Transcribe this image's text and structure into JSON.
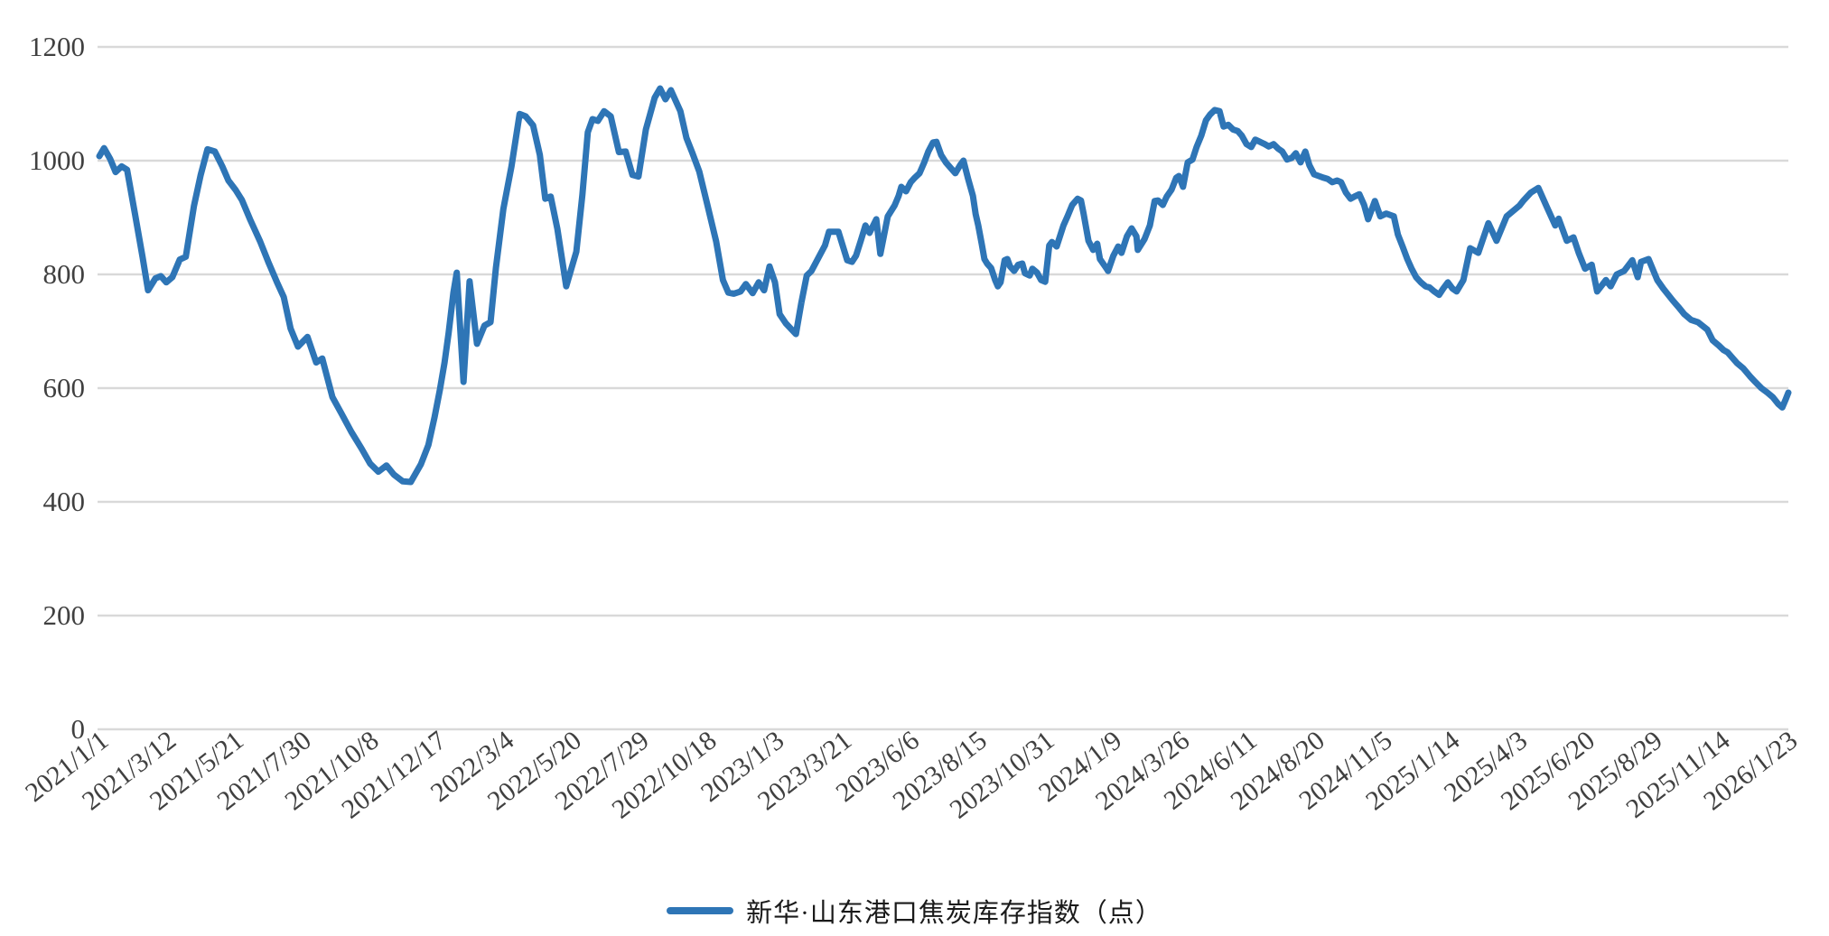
{
  "chart_data": {
    "type": "line",
    "title": "",
    "series_name": "新华·山东港口焦炭库存指数（点）",
    "xlabel": "",
    "ylabel": "",
    "ylim": [
      0,
      1200
    ],
    "y_ticks": [
      0,
      200,
      400,
      600,
      800,
      1000,
      1200
    ],
    "grid": true,
    "legend_position": "bottom",
    "line_color": "#2E75B6",
    "gridline_color": "#D9D9D9",
    "axis_text_color": "#404040",
    "x_label_step": 10,
    "x_labels": [
      "2021/1/1",
      "2021/3/12",
      "2021/5/21",
      "2021/7/30",
      "2021/10/8",
      "2021/12/17",
      "2022/3/4",
      "2022/5/20",
      "2022/7/29",
      "2022/10/18",
      "2023/1/3",
      "2023/3/21",
      "2023/6/6",
      "2023/8/15",
      "2023/10/31",
      "2024/1/9",
      "2024/3/26",
      "2024/6/11",
      "2024/8/20",
      "2024/11/5",
      "2025/1/14",
      "2025/4/3",
      "2025/6/20",
      "2025/8/29",
      "2025/11/14",
      "2026/1/23"
    ],
    "points": [
      [
        0,
        1008
      ],
      [
        0.7,
        1022
      ],
      [
        1.6,
        1003
      ],
      [
        2.4,
        980
      ],
      [
        3.3,
        990
      ],
      [
        4.1,
        984
      ],
      [
        5.3,
        905
      ],
      [
        6.4,
        830
      ],
      [
        7.2,
        772
      ],
      [
        8.3,
        793
      ],
      [
        9.1,
        797
      ],
      [
        9.9,
        786
      ],
      [
        10.8,
        795
      ],
      [
        11.9,
        826
      ],
      [
        12.8,
        831
      ],
      [
        14,
        920
      ],
      [
        15,
        975
      ],
      [
        16,
        1020
      ],
      [
        17.1,
        1016
      ],
      [
        18.2,
        990
      ],
      [
        19.1,
        965
      ],
      [
        20.2,
        948
      ],
      [
        21.1,
        931
      ],
      [
        22.3,
        897
      ],
      [
        23.8,
        858
      ],
      [
        25,
        822
      ],
      [
        26.3,
        786
      ],
      [
        27.3,
        760
      ],
      [
        28.3,
        705
      ],
      [
        29.4,
        673
      ],
      [
        30.8,
        690
      ],
      [
        32.1,
        645
      ],
      [
        33,
        652
      ],
      [
        34.5,
        584
      ],
      [
        35.8,
        556
      ],
      [
        37.3,
        523
      ],
      [
        38.8,
        494
      ],
      [
        40.1,
        467
      ],
      [
        41.3,
        453
      ],
      [
        42.5,
        464
      ],
      [
        43.6,
        448
      ],
      [
        44.9,
        436
      ],
      [
        46.1,
        435
      ],
      [
        47.6,
        466
      ],
      [
        48.7,
        500
      ],
      [
        49.6,
        548
      ],
      [
        50.4,
        597
      ],
      [
        51.1,
        645
      ],
      [
        51.7,
        697
      ],
      [
        52.4,
        768
      ],
      [
        52.9,
        803
      ],
      [
        53.9,
        611
      ],
      [
        54.8,
        788
      ],
      [
        55.9,
        678
      ],
      [
        57,
        710
      ],
      [
        57.9,
        716
      ],
      [
        58.7,
        812
      ],
      [
        59.8,
        915
      ],
      [
        61,
        990
      ],
      [
        62.2,
        1082
      ],
      [
        63.1,
        1078
      ],
      [
        64.2,
        1062
      ],
      [
        65.2,
        1010
      ],
      [
        66,
        933
      ],
      [
        66.8,
        937
      ],
      [
        67.8,
        880
      ],
      [
        69.1,
        779
      ],
      [
        70.6,
        840
      ],
      [
        71.5,
        940
      ],
      [
        72.3,
        1050
      ],
      [
        73,
        1073
      ],
      [
        73.8,
        1070
      ],
      [
        74.7,
        1087
      ],
      [
        75.7,
        1078
      ],
      [
        76.9,
        1015
      ],
      [
        77.9,
        1016
      ],
      [
        78.9,
        975
      ],
      [
        79.8,
        972
      ],
      [
        80.9,
        1055
      ],
      [
        82.2,
        1111
      ],
      [
        83,
        1127
      ],
      [
        83.8,
        1108
      ],
      [
        84.6,
        1124
      ],
      [
        86,
        1087
      ],
      [
        86.9,
        1040
      ],
      [
        87.8,
        1013
      ],
      [
        88.8,
        981
      ],
      [
        90,
        922
      ],
      [
        91.3,
        858
      ],
      [
        92.3,
        790
      ],
      [
        93.1,
        768
      ],
      [
        93.9,
        766
      ],
      [
        94.9,
        770
      ],
      [
        95.7,
        783
      ],
      [
        96.7,
        767
      ],
      [
        97.6,
        786
      ],
      [
        98.4,
        772
      ],
      [
        99.2,
        814
      ],
      [
        100,
        786
      ],
      [
        100.7,
        730
      ],
      [
        101.6,
        714
      ],
      [
        103.1,
        695
      ],
      [
        103.9,
        750
      ],
      [
        104.7,
        798
      ],
      [
        105.4,
        806
      ],
      [
        106.6,
        833
      ],
      [
        107.4,
        851
      ],
      [
        108,
        875
      ],
      [
        109.4,
        875
      ],
      [
        110.7,
        825
      ],
      [
        111.4,
        822
      ],
      [
        112,
        833
      ],
      [
        112.7,
        859
      ],
      [
        113.4,
        886
      ],
      [
        114,
        873
      ],
      [
        115,
        897
      ],
      [
        115.6,
        836
      ],
      [
        116.7,
        902
      ],
      [
        117.7,
        921
      ],
      [
        118.3,
        938
      ],
      [
        118.7,
        954
      ],
      [
        119.4,
        946
      ],
      [
        120.1,
        962
      ],
      [
        120.7,
        970
      ],
      [
        121.4,
        978
      ],
      [
        122.1,
        997
      ],
      [
        122.7,
        1016
      ],
      [
        123.4,
        1032
      ],
      [
        123.9,
        1033
      ],
      [
        124.6,
        1010
      ],
      [
        125.3,
        997
      ],
      [
        126.1,
        986
      ],
      [
        126.7,
        978
      ],
      [
        127.4,
        992
      ],
      [
        127.9,
        1000
      ],
      [
        128.6,
        968
      ],
      [
        129.3,
        938
      ],
      [
        129.7,
        906
      ],
      [
        130.1,
        886
      ],
      [
        130.6,
        854
      ],
      [
        131,
        827
      ],
      [
        131.4,
        819
      ],
      [
        132,
        811
      ],
      [
        132.6,
        790
      ],
      [
        133,
        779
      ],
      [
        133.4,
        786
      ],
      [
        134,
        825
      ],
      [
        134.4,
        827
      ],
      [
        134.8,
        814
      ],
      [
        135.4,
        806
      ],
      [
        136,
        817
      ],
      [
        136.6,
        819
      ],
      [
        137,
        802
      ],
      [
        137.7,
        798
      ],
      [
        138.1,
        810
      ],
      [
        138.8,
        803
      ],
      [
        139.4,
        790
      ],
      [
        140,
        787
      ],
      [
        140.6,
        851
      ],
      [
        141,
        857
      ],
      [
        141.7,
        849
      ],
      [
        142.7,
        886
      ],
      [
        143.3,
        902
      ],
      [
        144,
        922
      ],
      [
        144.8,
        933
      ],
      [
        145.3,
        930
      ],
      [
        145.7,
        906
      ],
      [
        146.4,
        859
      ],
      [
        147.1,
        843
      ],
      [
        147.7,
        854
      ],
      [
        148.1,
        827
      ],
      [
        149.1,
        810
      ],
      [
        149.3,
        806
      ],
      [
        150.1,
        833
      ],
      [
        150.8,
        849
      ],
      [
        151.3,
        838
      ],
      [
        152.1,
        867
      ],
      [
        152.8,
        881
      ],
      [
        153.5,
        867
      ],
      [
        153.7,
        843
      ],
      [
        154.7,
        862
      ],
      [
        155.5,
        886
      ],
      [
        156.2,
        929
      ],
      [
        156.7,
        930
      ],
      [
        157.4,
        922
      ],
      [
        158,
        937
      ],
      [
        158.7,
        949
      ],
      [
        159.4,
        970
      ],
      [
        159.8,
        973
      ],
      [
        160.4,
        954
      ],
      [
        161.1,
        997
      ],
      [
        161.8,
        1002
      ],
      [
        162.4,
        1024
      ],
      [
        163.1,
        1044
      ],
      [
        163.8,
        1071
      ],
      [
        164.4,
        1081
      ],
      [
        165.1,
        1089
      ],
      [
        165.8,
        1087
      ],
      [
        166.4,
        1060
      ],
      [
        167.1,
        1063
      ],
      [
        167.8,
        1055
      ],
      [
        168.5,
        1052
      ],
      [
        169.1,
        1044
      ],
      [
        169.8,
        1029
      ],
      [
        170.5,
        1024
      ],
      [
        171.1,
        1037
      ],
      [
        171.8,
        1033
      ],
      [
        172.5,
        1029
      ],
      [
        173.1,
        1025
      ],
      [
        173.8,
        1029
      ],
      [
        174.5,
        1021
      ],
      [
        175.1,
        1016
      ],
      [
        175.8,
        1002
      ],
      [
        176.5,
        1005
      ],
      [
        177.1,
        1013
      ],
      [
        177.8,
        997
      ],
      [
        178.5,
        1016
      ],
      [
        179.1,
        992
      ],
      [
        179.8,
        976
      ],
      [
        180.5,
        973
      ],
      [
        181.2,
        970
      ],
      [
        181.8,
        968
      ],
      [
        182.5,
        962
      ],
      [
        183.2,
        965
      ],
      [
        183.8,
        962
      ],
      [
        184.5,
        944
      ],
      [
        185.2,
        933
      ],
      [
        185.8,
        937
      ],
      [
        186.5,
        941
      ],
      [
        187.2,
        922
      ],
      [
        187.8,
        897
      ],
      [
        188.8,
        929
      ],
      [
        189.6,
        902
      ],
      [
        190.5,
        907
      ],
      [
        191.6,
        902
      ],
      [
        192.2,
        870
      ],
      [
        192.9,
        849
      ],
      [
        193.6,
        827
      ],
      [
        194.2,
        811
      ],
      [
        194.9,
        795
      ],
      [
        195.6,
        786
      ],
      [
        196.3,
        779
      ],
      [
        196.9,
        777
      ],
      [
        197.6,
        770
      ],
      [
        198.3,
        764
      ],
      [
        198.9,
        775
      ],
      [
        199.6,
        786
      ],
      [
        200.3,
        775
      ],
      [
        200.9,
        770
      ],
      [
        201.9,
        790
      ],
      [
        202.9,
        846
      ],
      [
        204.1,
        838
      ],
      [
        205.6,
        890
      ],
      [
        206.8,
        859
      ],
      [
        208.3,
        902
      ],
      [
        210.2,
        921
      ],
      [
        210.8,
        930
      ],
      [
        211.9,
        944
      ],
      [
        213,
        952
      ],
      [
        214.2,
        920
      ],
      [
        215.5,
        886
      ],
      [
        216,
        898
      ],
      [
        217.2,
        859
      ],
      [
        218.2,
        865
      ],
      [
        219,
        837
      ],
      [
        219.9,
        810
      ],
      [
        220.9,
        817
      ],
      [
        221.7,
        770
      ],
      [
        223,
        790
      ],
      [
        223.7,
        779
      ],
      [
        224.6,
        800
      ],
      [
        225.7,
        806
      ],
      [
        226.9,
        825
      ],
      [
        227.7,
        795
      ],
      [
        228.2,
        822
      ],
      [
        229.3,
        827
      ],
      [
        230.6,
        790
      ],
      [
        231.5,
        775
      ],
      [
        232.9,
        754
      ],
      [
        233.7,
        743
      ],
      [
        234.6,
        730
      ],
      [
        235.6,
        720
      ],
      [
        236.6,
        716
      ],
      [
        238,
        703
      ],
      [
        238.8,
        684
      ],
      [
        239.7,
        675
      ],
      [
        240.4,
        667
      ],
      [
        241,
        663
      ],
      [
        242.4,
        644
      ],
      [
        243.3,
        635
      ],
      [
        244.3,
        621
      ],
      [
        245.1,
        611
      ],
      [
        246,
        600
      ],
      [
        246.9,
        592
      ],
      [
        247.7,
        584
      ],
      [
        248.5,
        572
      ],
      [
        249.1,
        566
      ],
      [
        249.6,
        580
      ],
      [
        250,
        592
      ]
    ]
  },
  "legend": {
    "label": "新华·山东港口焦炭库存指数（点）"
  }
}
